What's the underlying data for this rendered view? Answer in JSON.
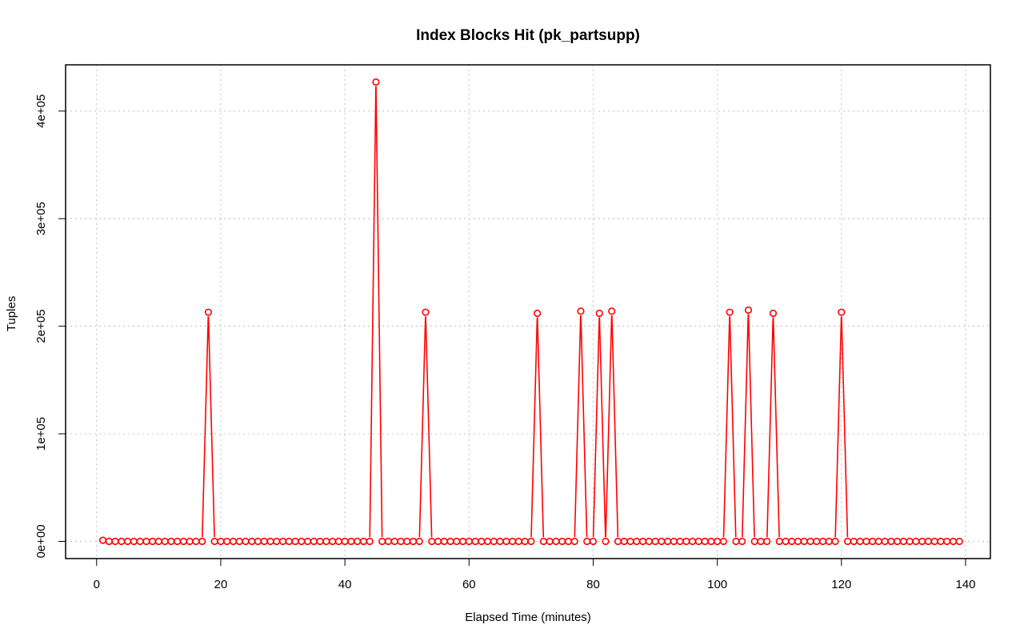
{
  "chart_data": {
    "type": "line",
    "title": "Index Blocks Hit (pk_partsupp)",
    "xlabel": "Elapsed Time (minutes)",
    "ylabel": "Tuples",
    "xlim": [
      -5,
      144
    ],
    "ylim": [
      -16000,
      443000
    ],
    "xticks": [
      0,
      20,
      40,
      60,
      80,
      100,
      120,
      140
    ],
    "xtick_labels": [
      "0",
      "20",
      "40",
      "60",
      "80",
      "100",
      "120",
      "140"
    ],
    "yticks": [
      0,
      100000,
      200000,
      300000,
      400000
    ],
    "ytick_labels": [
      "0e+00",
      "1e+05",
      "2e+05",
      "3e+05",
      "4e+05"
    ],
    "grid": true,
    "series": [
      {
        "color": "#ff0000",
        "marker": "open-circle",
        "x_start": 1,
        "x_step": 1,
        "values": [
          1000,
          0,
          0,
          0,
          0,
          0,
          0,
          0,
          0,
          0,
          0,
          0,
          0,
          0,
          0,
          0,
          0,
          213000,
          0,
          0,
          0,
          0,
          0,
          0,
          0,
          0,
          0,
          0,
          0,
          0,
          0,
          0,
          0,
          0,
          0,
          0,
          0,
          0,
          0,
          0,
          0,
          0,
          0,
          0,
          427000,
          0,
          0,
          0,
          0,
          0,
          0,
          0,
          213000,
          0,
          0,
          0,
          0,
          0,
          0,
          0,
          0,
          0,
          0,
          0,
          0,
          0,
          0,
          0,
          0,
          0,
          212000,
          0,
          0,
          0,
          0,
          0,
          0,
          214000,
          0,
          0,
          212000,
          0,
          214000,
          0,
          0,
          0,
          0,
          0,
          0,
          0,
          0,
          0,
          0,
          0,
          0,
          0,
          0,
          0,
          0,
          0,
          0,
          213000,
          0,
          0,
          215000,
          0,
          0,
          0,
          212000,
          0,
          0,
          0,
          0,
          0,
          0,
          0,
          0,
          0,
          0,
          213000,
          0,
          0,
          0,
          0,
          0,
          0,
          0,
          0,
          0,
          0,
          0,
          0,
          0,
          0,
          0,
          0,
          0,
          0,
          0
        ]
      }
    ]
  }
}
